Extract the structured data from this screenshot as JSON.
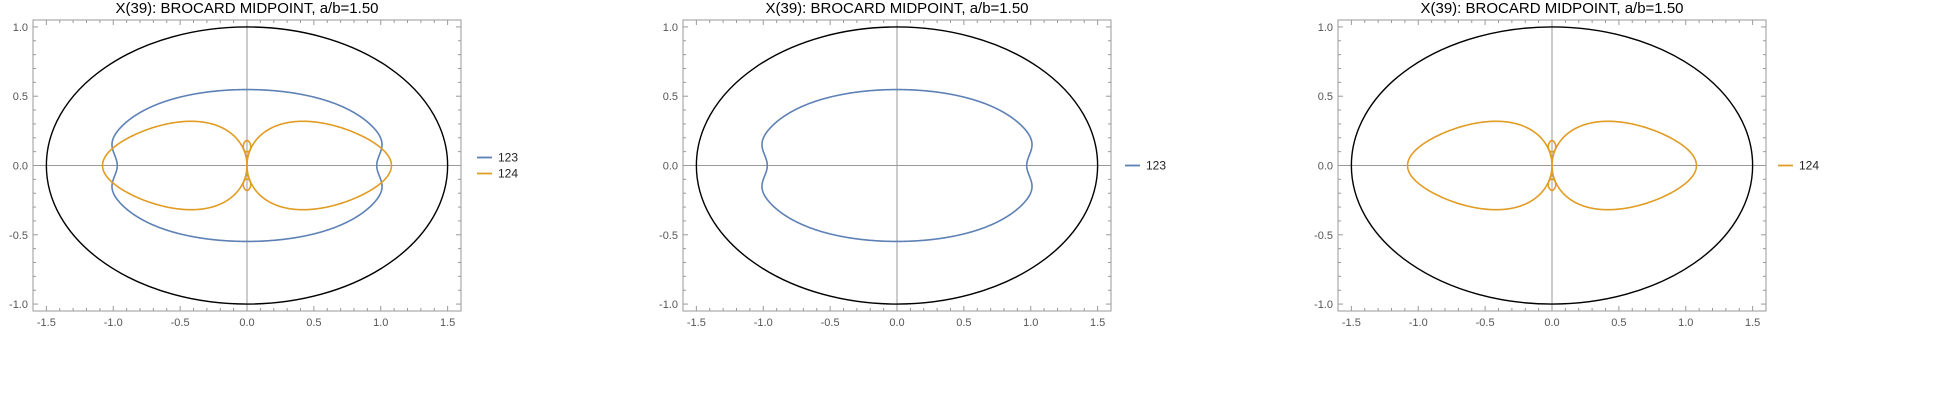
{
  "chart_data": [
    {
      "type": "line",
      "title": "X(39): BROCARD MIDPOINT, a/b=1.50",
      "xlabel": "",
      "ylabel": "",
      "xlim": [
        -1.6,
        1.6
      ],
      "ylim": [
        -1.05,
        1.05
      ],
      "xticks": [
        "-1.5",
        "-1.0",
        "-0.5",
        "0.0",
        "0.5",
        "1.0",
        "1.5"
      ],
      "yticks": [
        "-1.0",
        "-0.5",
        "0.0",
        "0.5",
        "1.0"
      ],
      "grid": false,
      "legend_placement": "right",
      "ellipse": {
        "a": 1.5,
        "b": 1.0,
        "color": "#000000"
      },
      "series": [
        {
          "name": "123",
          "color": "#5e81b5",
          "kind": "brocard-123"
        },
        {
          "name": "124",
          "color": "#e19c24",
          "kind": "brocard-124"
        }
      ]
    },
    {
      "type": "line",
      "title": "X(39): BROCARD MIDPOINT, a/b=1.50",
      "xlabel": "",
      "ylabel": "",
      "xlim": [
        -1.6,
        1.6
      ],
      "ylim": [
        -1.05,
        1.05
      ],
      "xticks": [
        "-1.5",
        "-1.0",
        "-0.5",
        "0.0",
        "0.5",
        "1.0",
        "1.5"
      ],
      "yticks": [
        "-1.0",
        "-0.5",
        "0.0",
        "0.5",
        "1.0"
      ],
      "grid": false,
      "legend_placement": "right",
      "ellipse": {
        "a": 1.5,
        "b": 1.0,
        "color": "#000000"
      },
      "series": [
        {
          "name": "123",
          "color": "#5e81b5",
          "kind": "brocard-123"
        }
      ]
    },
    {
      "type": "line",
      "title": "X(39): BROCARD MIDPOINT, a/b=1.50",
      "xlabel": "",
      "ylabel": "",
      "xlim": [
        -1.6,
        1.6
      ],
      "ylim": [
        -1.05,
        1.05
      ],
      "xticks": [
        "-1.5",
        "-1.0",
        "-0.5",
        "0.0",
        "0.5",
        "1.0",
        "1.5"
      ],
      "yticks": [
        "-1.0",
        "-0.5",
        "0.0",
        "0.5",
        "1.0"
      ],
      "grid": false,
      "legend_placement": "right",
      "ellipse": {
        "a": 1.5,
        "b": 1.0,
        "color": "#000000"
      },
      "series": [
        {
          "name": "124",
          "color": "#e19c24",
          "kind": "brocard-124"
        }
      ]
    }
  ]
}
